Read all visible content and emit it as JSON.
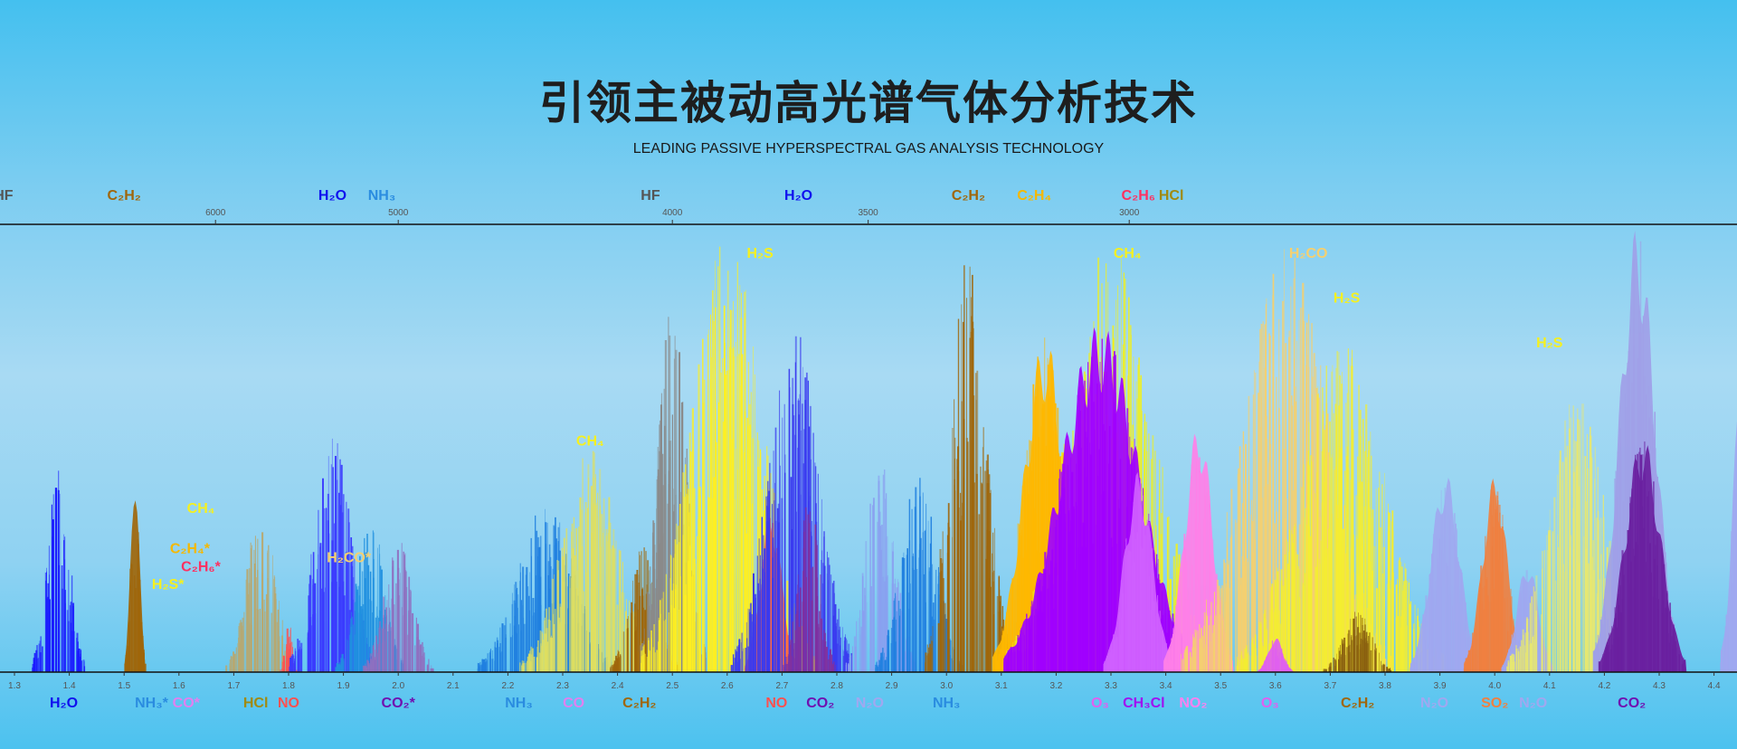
{
  "header": {
    "title": "引领主被动高光谱气体分析技术",
    "subtitle": "LEADING PASSIVE HYPERSPECTRAL GAS ANALYSIS TECHNOLOGY"
  },
  "chart_data": {
    "type": "bar",
    "title": "引领主被动高光谱气体分析技术",
    "xlabel": "",
    "ylabel": "",
    "xlim_um": [
      1.27,
      4.47
    ],
    "bottom_axis_ticks_um": [
      1.3,
      1.4,
      1.5,
      1.6,
      1.7,
      1.8,
      1.9,
      2.0,
      2.1,
      2.2,
      2.3,
      2.4,
      2.5,
      2.6,
      2.7,
      2.8,
      2.9,
      3.0,
      3.1,
      3.2,
      3.3,
      3.4,
      3.5,
      3.6,
      3.7,
      3.8,
      3.9,
      4.0,
      4.1,
      4.2,
      4.3,
      4.4
    ],
    "top_axis_ticks_cm": [
      6000,
      5000,
      4000,
      3500,
      3000
    ],
    "top_labels": [
      {
        "text": "HF",
        "um": 1.28,
        "color": "#555555"
      },
      {
        "text": "C₂H₂",
        "um": 1.5,
        "color": "#a0660a"
      },
      {
        "text": "H₂O",
        "um": 1.88,
        "color": "#1010ee"
      },
      {
        "text": "NH₃",
        "um": 1.97,
        "color": "#2a8ce0"
      },
      {
        "text": "HF",
        "um": 2.46,
        "color": "#555555"
      },
      {
        "text": "H₂O",
        "um": 2.73,
        "color": "#1010ee"
      },
      {
        "text": "C₂H₂",
        "um": 3.04,
        "color": "#a0660a"
      },
      {
        "text": "C₂H₄",
        "um": 3.16,
        "color": "#f5b800"
      },
      {
        "text": "C₂H₆",
        "um": 3.35,
        "color": "#ff3060"
      },
      {
        "text": "HCl",
        "um": 3.41,
        "color": "#a08a10"
      }
    ],
    "inner_labels": [
      {
        "text": "H₂S",
        "um": 2.66,
        "level": 0.95,
        "color": "#f5f020"
      },
      {
        "text": "CH₄",
        "um": 3.33,
        "level": 0.95,
        "color": "#f5f020"
      },
      {
        "text": "H₂CO",
        "um": 3.66,
        "level": 0.95,
        "color": "#f5d070"
      },
      {
        "text": "H₂S",
        "um": 3.73,
        "level": 0.85,
        "color": "#f5f020"
      },
      {
        "text": "H₂S",
        "um": 4.1,
        "level": 0.75,
        "color": "#f5f020"
      },
      {
        "text": "CH₄",
        "um": 2.35,
        "level": 0.53,
        "color": "#f5f020"
      },
      {
        "text": "CH₄",
        "um": 1.64,
        "level": 0.38,
        "color": "#f5f020"
      },
      {
        "text": "C₂H₄*",
        "um": 1.62,
        "level": 0.29,
        "color": "#f5b800"
      },
      {
        "text": "C₂H₆*",
        "um": 1.64,
        "level": 0.25,
        "color": "#ff3060"
      },
      {
        "text": "H₂S*",
        "um": 1.58,
        "level": 0.21,
        "color": "#f5f020"
      },
      {
        "text": "H₂CO*",
        "um": 1.91,
        "level": 0.27,
        "color": "#f5d070"
      }
    ],
    "bottom_labels": [
      {
        "text": "H₂O",
        "um": 1.39,
        "color": "#1010ee"
      },
      {
        "text": "NH₃*",
        "um": 1.55,
        "color": "#2a8ce0"
      },
      {
        "text": "CO*",
        "um": 1.59,
        "color": "#e080f0"
      },
      {
        "text": "HCl",
        "um": 1.74,
        "color": "#a08a10"
      },
      {
        "text": "NO",
        "um": 1.8,
        "color": "#ff5050"
      },
      {
        "text": "CO₂*",
        "um": 2.0,
        "color": "#7010b0"
      },
      {
        "text": "NH₃",
        "um": 2.22,
        "color": "#2a8ce0"
      },
      {
        "text": "CO",
        "um": 2.32,
        "color": "#e080f0"
      },
      {
        "text": "C₂H₂",
        "um": 2.44,
        "color": "#a0660a"
      },
      {
        "text": "NO",
        "um": 2.69,
        "color": "#ff5050"
      },
      {
        "text": "CO₂",
        "um": 2.77,
        "color": "#7010b0"
      },
      {
        "text": "N₂O",
        "um": 2.86,
        "color": "#a0a8f0"
      },
      {
        "text": "NH₃",
        "um": 3.0,
        "color": "#2a8ce0"
      },
      {
        "text": "O₃",
        "um": 3.28,
        "color": "#e060f0"
      },
      {
        "text": "CH₃Cl",
        "um": 3.36,
        "color": "#a010f0"
      },
      {
        "text": "NO₂",
        "um": 3.45,
        "color": "#ff80f0"
      },
      {
        "text": "O₃",
        "um": 3.59,
        "color": "#e060f0"
      },
      {
        "text": "C₂H₂",
        "um": 3.75,
        "color": "#a0660a"
      },
      {
        "text": "N₂O",
        "um": 3.89,
        "color": "#a0a8f0"
      },
      {
        "text": "SO₂",
        "um": 4.0,
        "color": "#f08040"
      },
      {
        "text": "N₂O",
        "um": 4.07,
        "color": "#a0a8f0"
      },
      {
        "text": "CO₂",
        "um": 4.25,
        "color": "#7010b0"
      }
    ],
    "bands": [
      {
        "gas": "H2O",
        "center": 1.38,
        "halfwidth": 0.03,
        "peak": 0.5,
        "color": "#1a1aff",
        "fill": false
      },
      {
        "gas": "C2H2",
        "center": 1.52,
        "halfwidth": 0.012,
        "peak": 0.48,
        "color": "#a0660a",
        "fill": true
      },
      {
        "gas": "HCl",
        "center": 1.75,
        "halfwidth": 0.04,
        "peak": 0.38,
        "color": "#b8a870",
        "fill": false
      },
      {
        "gas": "NO",
        "center": 1.8,
        "halfwidth": 0.01,
        "peak": 0.12,
        "color": "#ff5050",
        "fill": false
      },
      {
        "gas": "H2O",
        "center": 1.88,
        "halfwidth": 0.05,
        "peak": 0.55,
        "color": "#3a3aff",
        "fill": false
      },
      {
        "gas": "NH3",
        "center": 1.95,
        "halfwidth": 0.04,
        "peak": 0.35,
        "color": "#2090e0",
        "fill": false
      },
      {
        "gas": "CO2",
        "center": 2.0,
        "halfwidth": 0.04,
        "peak": 0.3,
        "color": "#9070c0",
        "fill": false
      },
      {
        "gas": "NH3",
        "center": 2.27,
        "halfwidth": 0.08,
        "peak": 0.38,
        "color": "#2080e0",
        "fill": false
      },
      {
        "gas": "CH4",
        "center": 2.35,
        "halfwidth": 0.08,
        "peak": 0.5,
        "color": "#e0e060",
        "fill": false
      },
      {
        "gas": "C2H2",
        "center": 2.45,
        "halfwidth": 0.04,
        "peak": 0.3,
        "color": "#a0660a",
        "fill": false
      },
      {
        "gas": "HF",
        "center": 2.5,
        "halfwidth": 0.04,
        "peak": 0.85,
        "color": "#8a8a8a",
        "fill": false
      },
      {
        "gas": "H2S",
        "center": 2.6,
        "halfwidth": 0.1,
        "peak": 0.98,
        "color": "#fff020",
        "fill": false
      },
      {
        "gas": "NO",
        "center": 2.68,
        "halfwidth": 0.03,
        "peak": 0.36,
        "color": "#ff6a40",
        "fill": true
      },
      {
        "gas": "H2O",
        "center": 2.72,
        "halfwidth": 0.07,
        "peak": 0.8,
        "color": "#3a3af0",
        "fill": false
      },
      {
        "gas": "CO2",
        "center": 2.75,
        "halfwidth": 0.03,
        "peak": 0.4,
        "color": "#8030a0",
        "fill": false
      },
      {
        "gas": "N2O",
        "center": 2.88,
        "halfwidth": 0.04,
        "peak": 0.5,
        "color": "#8aa0f0",
        "fill": false
      },
      {
        "gas": "NH3",
        "center": 2.95,
        "halfwidth": 0.05,
        "peak": 0.45,
        "color": "#2080e0",
        "fill": false
      },
      {
        "gas": "C2H2",
        "center": 3.04,
        "halfwidth": 0.05,
        "peak": 0.98,
        "color": "#a0660a",
        "fill": false
      },
      {
        "gas": "C2H4",
        "center": 3.18,
        "halfwidth": 0.06,
        "peak": 0.75,
        "color": "#ffb800",
        "fill": true
      },
      {
        "gas": "CH4",
        "center": 3.3,
        "halfwidth": 0.12,
        "peak": 0.97,
        "color": "#f0f020",
        "fill": false
      },
      {
        "gas": "O3",
        "center": 3.28,
        "halfwidth": 0.11,
        "peak": 0.78,
        "color": "#a000ff",
        "fill": true
      },
      {
        "gas": "CH3Cl",
        "center": 3.35,
        "halfwidth": 0.04,
        "peak": 0.45,
        "color": "#d060ff",
        "fill": true
      },
      {
        "gas": "NO2",
        "center": 3.46,
        "halfwidth": 0.04,
        "peak": 0.56,
        "color": "#ff80e8",
        "fill": true
      },
      {
        "gas": "H2CO",
        "center": 3.62,
        "halfwidth": 0.12,
        "peak": 0.95,
        "color": "#f5d070",
        "fill": false
      },
      {
        "gas": "H2S",
        "center": 3.72,
        "halfwidth": 0.12,
        "peak": 0.75,
        "color": "#f5ee30",
        "fill": false
      },
      {
        "gas": "O3",
        "center": 3.6,
        "halfwidth": 0.02,
        "peak": 0.08,
        "color": "#e060f0",
        "fill": true
      },
      {
        "gas": "C2H2",
        "center": 3.75,
        "halfwidth": 0.04,
        "peak": 0.14,
        "color": "#8a6010",
        "fill": false
      },
      {
        "gas": "N2O",
        "center": 3.91,
        "halfwidth": 0.04,
        "peak": 0.45,
        "color": "#a0a8f0",
        "fill": true
      },
      {
        "gas": "SO2",
        "center": 4.0,
        "halfwidth": 0.035,
        "peak": 0.44,
        "color": "#f08040",
        "fill": true
      },
      {
        "gas": "N2O",
        "center": 4.06,
        "halfwidth": 0.03,
        "peak": 0.25,
        "color": "#a0a8f0",
        "fill": true
      },
      {
        "gas": "H2S",
        "center": 4.15,
        "halfwidth": 0.08,
        "peak": 0.62,
        "color": "#e8e870",
        "fill": false
      },
      {
        "gas": "N2O",
        "center": 4.26,
        "halfwidth": 0.05,
        "peak": 1.0,
        "color": "#a0a0e8",
        "fill": true
      },
      {
        "gas": "CO2",
        "center": 4.27,
        "halfwidth": 0.05,
        "peak": 0.53,
        "color": "#6a20a0",
        "fill": true
      },
      {
        "gas": "N2O",
        "center": 4.46,
        "halfwidth": 0.03,
        "peak": 0.95,
        "color": "#a0a8f0",
        "fill": true
      }
    ]
  }
}
